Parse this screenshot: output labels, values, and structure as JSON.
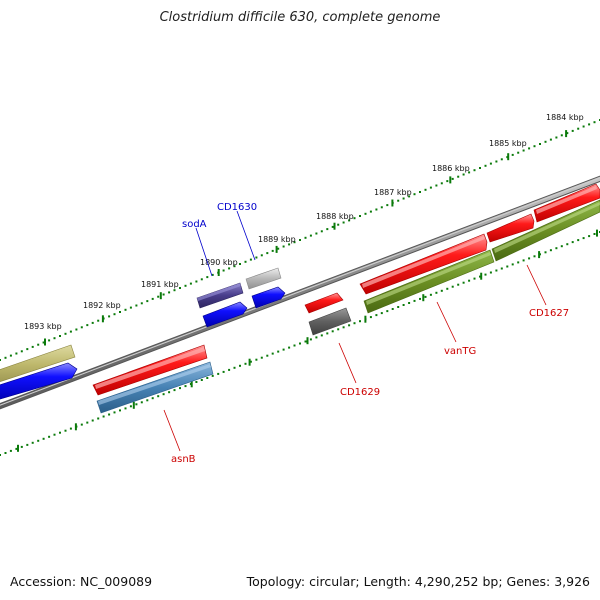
{
  "title": "Clostridium difficile 630, complete genome",
  "footer": {
    "accession": "Accession: NC_009089",
    "info": "Topology: circular; Length: 4,290,252 bp; Genes: 3,926"
  },
  "kbp_labels": [
    "1884 kbp",
    "1885 kbp",
    "1886 kbp",
    "1887 kbp",
    "1888 kbp",
    "1889 kbp",
    "1890 kbp",
    "1891 kbp",
    "1892 kbp",
    "1893 kbp"
  ],
  "gene_labels": {
    "sodA": "sodA",
    "cd1630": "CD1630",
    "cd1629": "CD1629",
    "vantg": "vanTG",
    "cd1627": "CD1627",
    "asnb": "asnB"
  },
  "colors": {
    "backbone": "#808080",
    "ticks": "#0a7a0a",
    "gene_red": "#ee0000",
    "gene_blue": "#0000ee",
    "gene_olive": "#6b8e23",
    "gene_khaki": "#bdb76b",
    "gene_steelblue": "#4682b4",
    "gene_slate": "#483d8b",
    "gene_gray": "#b0b0b0",
    "gene_darkgray": "#606060",
    "label_blue": "#0000cc",
    "label_red": "#cc0000"
  }
}
